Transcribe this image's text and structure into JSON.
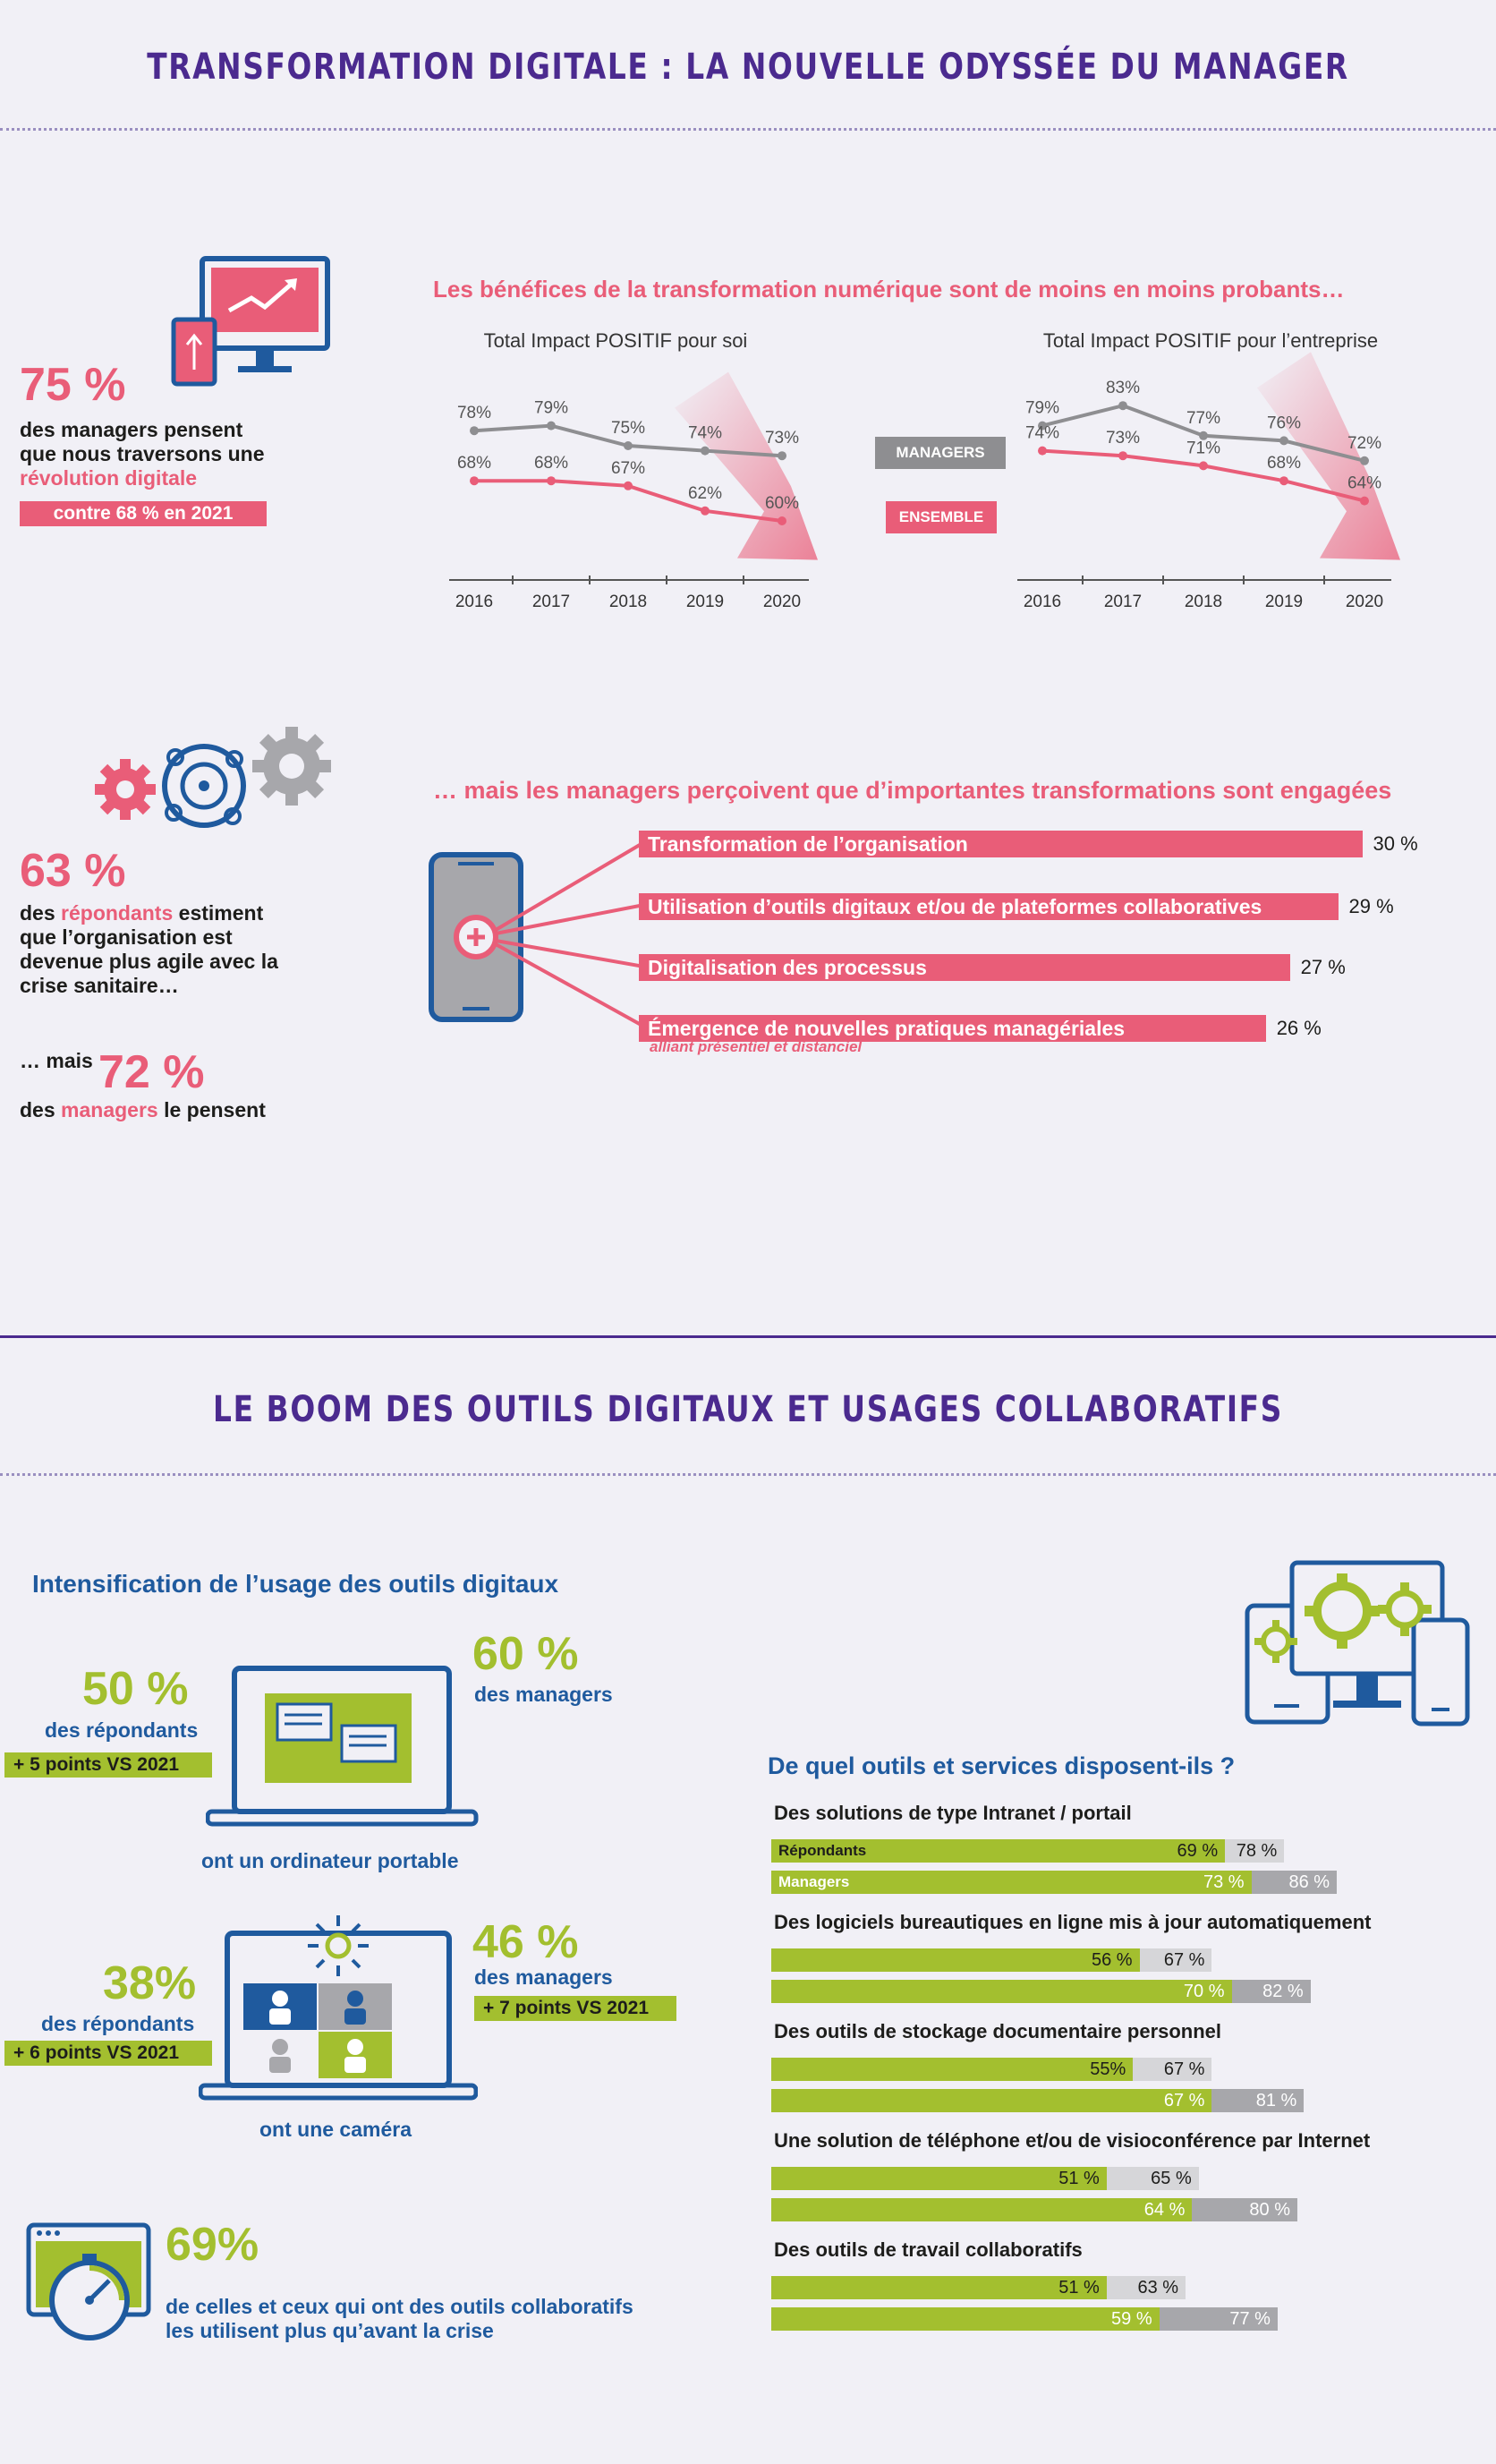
{
  "section1": {
    "title": "TRANSFORMATION DIGITALE : LA NOUVELLE ODYSSÉE DU MANAGER"
  },
  "stat75": {
    "pct": "75 %",
    "line1": "des managers pensent",
    "line2": "que nous traversons une",
    "highlight": "révolution digitale",
    "badge": "contre 68 % en 2021"
  },
  "benefits": {
    "heading": "Les bénéfices de la transformation numérique sont de moins en moins probants…",
    "legend_managers": "MANAGERS",
    "legend_ensemble": "ENSEMBLE"
  },
  "chart_data": [
    {
      "type": "line",
      "title": "Total Impact POSITIF pour soi",
      "x": [
        "2016",
        "2017",
        "2018",
        "2019",
        "2020"
      ],
      "series": [
        {
          "name": "MANAGERS",
          "values": [
            78,
            79,
            75,
            74,
            73
          ],
          "labels": [
            "78%",
            "79%",
            "75%",
            "74%",
            "73%"
          ]
        },
        {
          "name": "ENSEMBLE",
          "values": [
            68,
            68,
            67,
            62,
            60
          ],
          "labels": [
            "68%",
            "68%",
            "67%",
            "62%",
            "60%"
          ]
        }
      ]
    },
    {
      "type": "line",
      "title": "Total Impact POSITIF pour l’entreprise",
      "x": [
        "2016",
        "2017",
        "2018",
        "2019",
        "2020"
      ],
      "series": [
        {
          "name": "MANAGERS",
          "values": [
            79,
            83,
            77,
            76,
            72
          ],
          "labels": [
            "79%",
            "83%",
            "77%",
            "76%",
            "72%"
          ]
        },
        {
          "name": "ENSEMBLE",
          "values": [
            74,
            73,
            71,
            68,
            64
          ],
          "labels": [
            "74%",
            "73%",
            "71%",
            "68%",
            "64%"
          ]
        }
      ]
    },
    {
      "type": "bar",
      "title": "… mais les managers perçoivent que d’importantes transformations sont engagées",
      "categories": [
        "Transformation de l’organisation",
        "Utilisation d’outils digitaux et/ou de plateformes collaboratives",
        "Digitalisation des processus",
        "Émergence de nouvelles pratiques managériales"
      ],
      "values": [
        30,
        29,
        27,
        26
      ],
      "labels": [
        "30 %",
        "29 %",
        "27 %",
        "26 %"
      ],
      "note": "alliant présentiel et distanciel"
    },
    {
      "type": "bar",
      "title": "De quel outils et services disposent-ils ?",
      "categories": [
        "Des solutions de type Intranet / portail",
        "Des logiciels bureautiques en ligne mis à jour automatiquement",
        "Des outils de stockage documentaire personnel",
        "Une solution de téléphone et/ou de visioconférence par Internet",
        "Des outils de travail collaboratifs"
      ],
      "series": [
        {
          "name": "Répondants",
          "values": [
            69,
            56,
            55,
            51,
            51
          ],
          "total": [
            78,
            67,
            67,
            65,
            63
          ],
          "labels": [
            "69 %",
            "56 %",
            "55%",
            "51 %",
            "51 %"
          ],
          "total_labels": [
            "78 %",
            "67 %",
            "67 %",
            "65 %",
            "63 %"
          ]
        },
        {
          "name": "Managers",
          "values": [
            73,
            70,
            67,
            64,
            59
          ],
          "total": [
            86,
            82,
            81,
            80,
            77
          ],
          "labels": [
            "73 %",
            "70 %",
            "67 %",
            "64 %",
            "59 %"
          ],
          "total_labels": [
            "86 %",
            "82 %",
            "81 %",
            "80 %",
            "77 %"
          ]
        }
      ]
    }
  ],
  "stat63": {
    "pct": "63 %",
    "pre": "des ",
    "highlight": "répondants",
    "line1rest": " estiment",
    "line2": "que l’organisation est",
    "line3": "devenue plus agile avec la",
    "line4": "crise sanitaire…"
  },
  "stat72": {
    "pre": "… mais",
    "pct": "72 %",
    "pre2": "des ",
    "highlight": "managers",
    "rest": " le pensent"
  },
  "section2": {
    "title": "LE BOOM DES OUTILS DIGITAUX ET USAGES COLLABORATIFS"
  },
  "usage": {
    "heading": "Intensification de l’usage des outils digitaux",
    "laptop": {
      "resp_pct": "50 %",
      "resp_label": "des répondants",
      "resp_badge": "+ 5 points VS 2021",
      "mgr_pct": "60 %",
      "mgr_label": "des managers",
      "caption": "ont un ordinateur portable"
    },
    "camera": {
      "resp_pct": "38%",
      "resp_label": "des répondants",
      "resp_badge": "+ 6 points VS 2021",
      "mgr_pct": "46 %",
      "mgr_label": "des managers",
      "mgr_badge": "+ 7 points VS 2021",
      "caption": "ont une caméra"
    },
    "collab": {
      "pct": "69%",
      "line1": "de celles et ceux qui ont des outils collaboratifs",
      "line2": "les utilisent plus qu’avant la crise"
    }
  },
  "colors": {
    "purple": "#4b2a8f",
    "pink": "#e95d78",
    "grey": "#8e8e91",
    "green": "#a3bf2f",
    "blue": "#1f5a9e",
    "lightgrey": "#d6d6d9",
    "midgrey": "#a7a7ab"
  }
}
